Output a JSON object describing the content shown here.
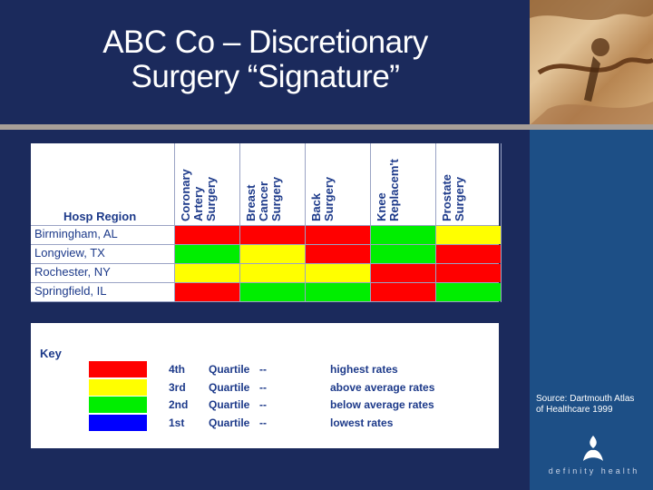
{
  "title": "ABC Co – Discretionary Surgery “Signature”",
  "matrix": {
    "row_header": "Hosp Region",
    "columns": [
      "Coronary\nArtery\nSurgery",
      "Breast\nCancer\nSurgery",
      "Back\nSurgery",
      "Knee\nReplacem't",
      "Prostate\nSurgery"
    ],
    "rows": [
      {
        "label": "Birmingham, AL",
        "cells": [
          "red",
          "red",
          "red",
          "green",
          "yellow"
        ]
      },
      {
        "label": "Longview, TX",
        "cells": [
          "green",
          "yellow",
          "red",
          "green",
          "red"
        ]
      },
      {
        "label": "Rochester, NY",
        "cells": [
          "yellow",
          "yellow",
          "yellow",
          "red",
          "red"
        ]
      },
      {
        "label": "Springfield, IL",
        "cells": [
          "red",
          "green",
          "green",
          "red",
          "green"
        ]
      }
    ]
  },
  "colors": {
    "red": "#ff0000",
    "yellow": "#ffff00",
    "green": "#00ee00",
    "blue": "#0000ff"
  },
  "key": {
    "title": "Key",
    "items": [
      {
        "color": "red",
        "rank": "4th",
        "word": "Quartile",
        "dash": "--",
        "meaning": "highest rates"
      },
      {
        "color": "yellow",
        "rank": "3rd",
        "word": "Quartile",
        "dash": "--",
        "meaning": "above average rates"
      },
      {
        "color": "green",
        "rank": "2nd",
        "word": "Quartile",
        "dash": "--",
        "meaning": "below average rates"
      },
      {
        "color": "blue",
        "rank": "1st",
        "word": "Quartile",
        "dash": "--",
        "meaning": "lowest rates"
      }
    ]
  },
  "source": "Source: Dartmouth Atlas of Healthcare 1999",
  "logo_text": "definity health"
}
